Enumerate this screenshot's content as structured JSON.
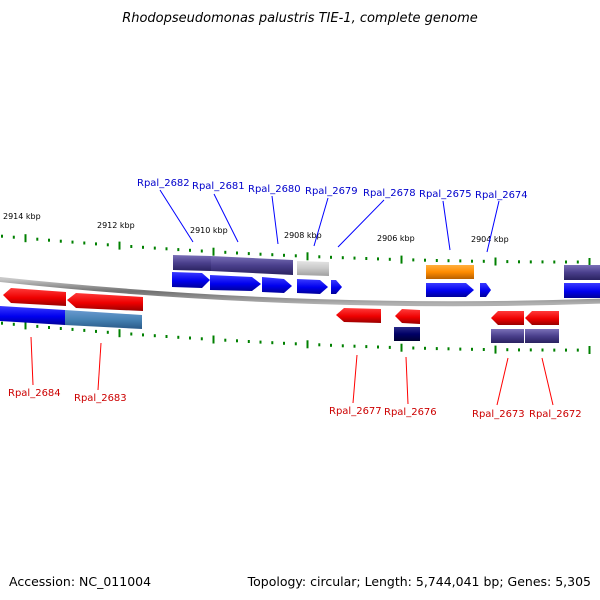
{
  "title": "Rhodopseudomonas palustris TIE-1, complete genome",
  "footer": {
    "accession": "Accession: NC_011004",
    "topology": "Topology: circular; Length: 5,744,041 bp; Genes: 5,305"
  },
  "colors": {
    "tick": "#008000",
    "forward_label": "#0000cc",
    "reverse_label": "#cc0000",
    "backbone": "#808080"
  },
  "kbp_labels": [
    "2914 kbp",
    "2912 kbp",
    "2910 kbp",
    "2908 kbp",
    "2906 kbp",
    "2904 kbp"
  ],
  "forward_labels": [
    "Rpal_2682",
    "Rpal_2681",
    "Rpal_2680",
    "Rpal_2679",
    "Rpal_2678",
    "Rpal_2675",
    "Rpal_2674"
  ],
  "reverse_labels": [
    "Rpal_2684",
    "Rpal_2683",
    "Rpal_2677",
    "Rpal_2676",
    "Rpal_2673",
    "Rpal_2672"
  ]
}
